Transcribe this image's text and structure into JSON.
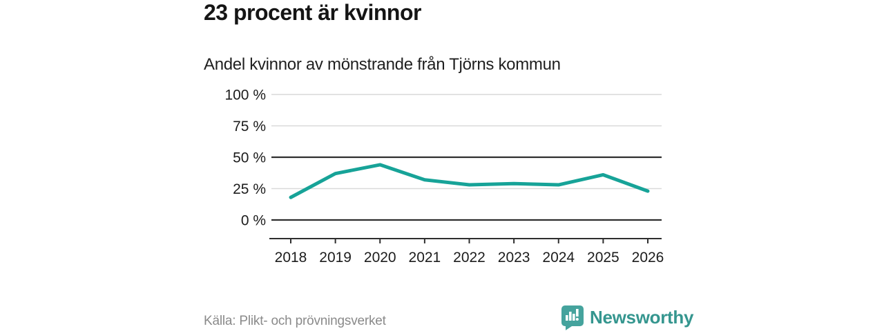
{
  "header": {
    "title": "23 procent är kvinnor",
    "subtitle": "Andel kvinnor av mönstrande från Tjörns kommun"
  },
  "chart_data": {
    "type": "line",
    "title": "23 procent är kvinnor",
    "subtitle": "Andel kvinnor av mönstrande från Tjörns kommun",
    "categories": [
      "2018",
      "2019",
      "2020",
      "2021",
      "2022",
      "2023",
      "2024",
      "2025",
      "2026"
    ],
    "series": [
      {
        "name": "Andel kvinnor av mönstrande",
        "values": [
          18,
          37,
          44,
          32,
          28,
          29,
          28,
          36,
          23
        ]
      }
    ],
    "unit": "%",
    "ylim": [
      0,
      100
    ],
    "yticks": [
      0,
      25,
      50,
      75,
      100
    ],
    "ytick_labels": [
      "0 %",
      "25 %",
      "50 %",
      "75 %",
      "100 %"
    ],
    "emphasized_gridlines": [
      0,
      50
    ],
    "grid": "horizontal",
    "legend": "none",
    "line_color": "#17a398"
  },
  "footer": {
    "source": "Källa: Plikt- och prövningsverket",
    "brand": "Newsworthy"
  },
  "colors": {
    "accent_teal": "#17a398",
    "logo_icon": "#45a39d",
    "logo_text": "#35968f",
    "grid_light": "#d9d9d9",
    "grid_dark": "#2e2e2e",
    "source_gray": "#8a8a8a"
  }
}
